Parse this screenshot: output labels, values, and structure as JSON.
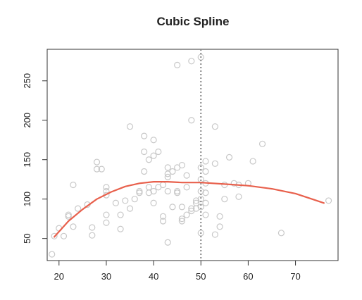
{
  "chart_data": {
    "type": "scatter",
    "title": "Cubic Spline",
    "xlabel": "",
    "ylabel": "",
    "xlim": [
      17.5,
      79
    ],
    "ylim": [
      22,
      290
    ],
    "x_ticks": [
      20,
      30,
      40,
      50,
      60,
      70
    ],
    "y_ticks": [
      50,
      100,
      150,
      200,
      250
    ],
    "grid": false,
    "legend": "none",
    "vline": {
      "x": 50,
      "style": "dotted",
      "color": "#888888"
    },
    "points_color": "#c8c8c8",
    "fit_color": "#e8604c",
    "points": [
      [
        18.5,
        30
      ],
      [
        19,
        53
      ],
      [
        20,
        63
      ],
      [
        21,
        53
      ],
      [
        22,
        78
      ],
      [
        22,
        80
      ],
      [
        23,
        118
      ],
      [
        23,
        65
      ],
      [
        24,
        88
      ],
      [
        26,
        93
      ],
      [
        27,
        64
      ],
      [
        27,
        54
      ],
      [
        28,
        138
      ],
      [
        28,
        147
      ],
      [
        29,
        138
      ],
      [
        30,
        110
      ],
      [
        30,
        115
      ],
      [
        30,
        105
      ],
      [
        30,
        80
      ],
      [
        30,
        70
      ],
      [
        32,
        95
      ],
      [
        33,
        80
      ],
      [
        33,
        62
      ],
      [
        34,
        98
      ],
      [
        35,
        88
      ],
      [
        35,
        192
      ],
      [
        36,
        100
      ],
      [
        37,
        108
      ],
      [
        37,
        110
      ],
      [
        38,
        135
      ],
      [
        38,
        160
      ],
      [
        38,
        180
      ],
      [
        39,
        108
      ],
      [
        39,
        115
      ],
      [
        39,
        150
      ],
      [
        40,
        175
      ],
      [
        40,
        155
      ],
      [
        40,
        110
      ],
      [
        40,
        95
      ],
      [
        41,
        160
      ],
      [
        41,
        115
      ],
      [
        42,
        118
      ],
      [
        42,
        78
      ],
      [
        42,
        72
      ],
      [
        43,
        140
      ],
      [
        43,
        128
      ],
      [
        43,
        132
      ],
      [
        43,
        110
      ],
      [
        43,
        45
      ],
      [
        44,
        90
      ],
      [
        44,
        135
      ],
      [
        45,
        140
      ],
      [
        45,
        110
      ],
      [
        45,
        108
      ],
      [
        45,
        270
      ],
      [
        46,
        143
      ],
      [
        46,
        75
      ],
      [
        46,
        72
      ],
      [
        46,
        90
      ],
      [
        47,
        130
      ],
      [
        47,
        115
      ],
      [
        47,
        80
      ],
      [
        48,
        200
      ],
      [
        48,
        275
      ],
      [
        48,
        88
      ],
      [
        48,
        85
      ],
      [
        49,
        95
      ],
      [
        49,
        98
      ],
      [
        49,
        88
      ],
      [
        50,
        140
      ],
      [
        50,
        125
      ],
      [
        50,
        110
      ],
      [
        50,
        100
      ],
      [
        50,
        90
      ],
      [
        50,
        280
      ],
      [
        50,
        57
      ],
      [
        51,
        148
      ],
      [
        51,
        135
      ],
      [
        51,
        120
      ],
      [
        51,
        108
      ],
      [
        51,
        95
      ],
      [
        51,
        80
      ],
      [
        53,
        192
      ],
      [
        53,
        145
      ],
      [
        53,
        55
      ],
      [
        54,
        78
      ],
      [
        54,
        65
      ],
      [
        55,
        118
      ],
      [
        55,
        100
      ],
      [
        56,
        153
      ],
      [
        57,
        120
      ],
      [
        58,
        118
      ],
      [
        58,
        103
      ],
      [
        60,
        120
      ],
      [
        61,
        148
      ],
      [
        63,
        170
      ],
      [
        67,
        57
      ],
      [
        77,
        98
      ]
    ],
    "fit": {
      "name": "",
      "x": [
        19,
        22,
        25,
        28,
        31,
        34,
        37,
        40,
        43,
        46,
        50,
        55,
        60,
        65,
        70,
        73,
        76
      ],
      "y": [
        52,
        72,
        87,
        100,
        109,
        116,
        120,
        122,
        122,
        121,
        121,
        119,
        117,
        113,
        107,
        101,
        95
      ]
    }
  }
}
